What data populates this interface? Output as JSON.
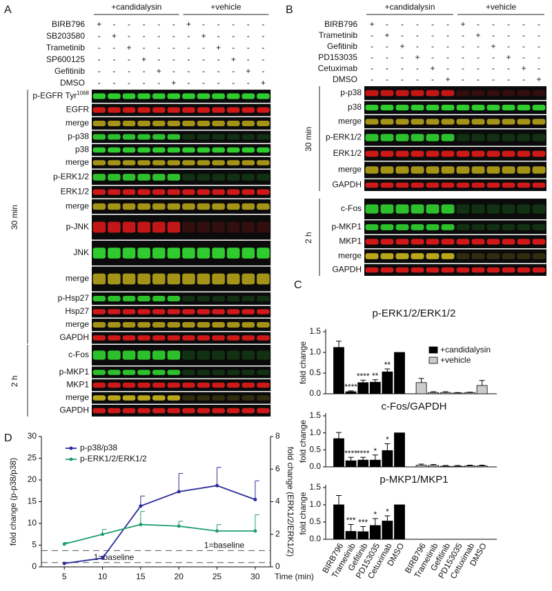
{
  "panel_A": {
    "label": "A",
    "groups": [
      "+candidalysin",
      "+vehicle"
    ],
    "treatments": [
      {
        "name": "BIRB796",
        "signs": [
          "+",
          "-",
          "-",
          "-",
          "-",
          "-",
          "+",
          "-",
          "-",
          "-",
          "-",
          "-"
        ]
      },
      {
        "name": "SB203580",
        "signs": [
          "-",
          "+",
          "-",
          "-",
          "-",
          "-",
          "-",
          "+",
          "-",
          "-",
          "-",
          "-"
        ]
      },
      {
        "name": "Trametinib",
        "signs": [
          "-",
          "-",
          "+",
          "-",
          "-",
          "-",
          "-",
          "-",
          "+",
          "-",
          "-",
          "-"
        ]
      },
      {
        "name": "SP600125",
        "signs": [
          "-",
          "-",
          "-",
          "+",
          "-",
          "-",
          "-",
          "-",
          "-",
          "+",
          "-",
          "-"
        ]
      },
      {
        "name": "Gefitinib",
        "signs": [
          "-",
          "-",
          "-",
          "-",
          "+",
          "-",
          "-",
          "-",
          "-",
          "-",
          "+",
          "-"
        ]
      },
      {
        "name": "DMSO",
        "signs": [
          "-",
          "-",
          "-",
          "-",
          "-",
          "+",
          "-",
          "-",
          "-",
          "-",
          "-",
          "+"
        ]
      }
    ],
    "sections": [
      {
        "label": "30 min",
        "rows": [
          {
            "text": "p-EGFR Tyr",
            "sup": "1068"
          },
          "EGFR",
          "merge",
          "p-p38",
          "p38",
          "merge",
          "p-ERK1/2",
          "ERK1/2",
          "merge",
          "p-JNK",
          "JNK",
          "merge",
          "p-Hsp27",
          "Hsp27",
          "merge",
          "GAPDH"
        ]
      },
      {
        "label": "2 h",
        "rows": [
          "c-Fos",
          "p-MKP1",
          "MKP1",
          "merge",
          "GAPDH"
        ]
      }
    ]
  },
  "panel_B": {
    "label": "B",
    "groups": [
      "+candidalysin",
      "+vehicle"
    ],
    "treatments": [
      {
        "name": "BIRB796",
        "signs": [
          "+",
          "-",
          "-",
          "-",
          "-",
          "-",
          "+",
          "-",
          "-",
          "-",
          "-",
          "-"
        ]
      },
      {
        "name": "Trametinib",
        "signs": [
          "-",
          "+",
          "-",
          "-",
          "-",
          "-",
          "-",
          "+",
          "-",
          "-",
          "-",
          "-"
        ]
      },
      {
        "name": "Gefitinib",
        "signs": [
          "-",
          "-",
          "+",
          "-",
          "-",
          "-",
          "-",
          "-",
          "+",
          "-",
          "-",
          "-"
        ]
      },
      {
        "name": "PD153035",
        "signs": [
          "-",
          "-",
          "-",
          "+",
          "-",
          "-",
          "-",
          "-",
          "-",
          "+",
          "-",
          "-"
        ]
      },
      {
        "name": "Cetuximab",
        "signs": [
          "-",
          "-",
          "-",
          "-",
          "+",
          "-",
          "-",
          "-",
          "-",
          "-",
          "+",
          "-"
        ]
      },
      {
        "name": "DMSO",
        "signs": [
          "-",
          "-",
          "-",
          "-",
          "-",
          "+",
          "-",
          "-",
          "-",
          "-",
          "-",
          "+"
        ]
      }
    ],
    "sections": [
      {
        "label": "30 min",
        "rows": [
          "p-p38",
          "p38",
          "merge",
          "p-ERK1/2",
          "ERK1/2",
          "merge",
          "GAPDH"
        ]
      },
      {
        "label": "2 h",
        "rows": [
          "c-Fos",
          "p-MKP1",
          "MKP1",
          "merge",
          "GAPDH"
        ]
      }
    ]
  },
  "panel_C": {
    "label": "C"
  },
  "panel_D": {
    "label": "D"
  },
  "chart_data": [
    {
      "type": "bar",
      "title": "p-ERK1/2/ERK1/2",
      "ylabel": "fold change",
      "ylim": [
        0,
        1.5
      ],
      "yticks": [
        {
          "value": 0,
          "label": "0.0"
        },
        0.5,
        {
          "value": 1,
          "label": "1.0"
        },
        1.5
      ],
      "legend": "upper right",
      "series": [
        {
          "name": "+candidalysin",
          "color": "#000000",
          "values": [
            1.12,
            0.05,
            0.27,
            0.28,
            0.53,
            1,
            null,
            null,
            null,
            null,
            null,
            null
          ],
          "errors": [
            0.15,
            0.02,
            0.06,
            0.06,
            0.07,
            null,
            null,
            null,
            null,
            null,
            null,
            null
          ],
          "significance": [
            null,
            "****",
            "****",
            "**",
            "**",
            null,
            null,
            null,
            null,
            null,
            null,
            null
          ]
        },
        {
          "name": "+vehicle",
          "color": "#cccccc",
          "values": [
            null,
            null,
            null,
            null,
            null,
            null,
            0.27,
            0.03,
            0.03,
            0.02,
            0.03,
            0.2
          ],
          "errors": [
            null,
            null,
            null,
            null,
            null,
            null,
            0.1,
            0.02,
            0.02,
            0.01,
            0.01,
            0.12
          ]
        }
      ]
    },
    {
      "type": "bar",
      "title": "c-Fos/GAPDH",
      "ylabel": "fold change",
      "ylim": [
        0,
        1.5
      ],
      "yticks": [
        {
          "value": 0,
          "label": "0.0"
        },
        0.5,
        {
          "value": 1,
          "label": "1.0"
        },
        1.5
      ],
      "series": [
        {
          "color": "#000000",
          "values": [
            0.83,
            0.18,
            0.2,
            0.2,
            0.48,
            1,
            null,
            null,
            null,
            null,
            null,
            null
          ],
          "errors": [
            0.18,
            0.1,
            0.08,
            0.15,
            0.2,
            null,
            null,
            null,
            null,
            null,
            null,
            null
          ],
          "significance": [
            null,
            "****",
            "****",
            "*",
            "*",
            null,
            null,
            null,
            null,
            null,
            null,
            null
          ]
        },
        {
          "color": "#cccccc",
          "values": [
            null,
            null,
            null,
            null,
            null,
            null,
            0.05,
            0.04,
            0.02,
            0.02,
            0.03,
            0.03
          ],
          "errors": [
            null,
            null,
            null,
            null,
            null,
            null,
            0.03,
            0.03,
            0.02,
            0.02,
            0.02,
            0.02
          ]
        }
      ]
    },
    {
      "type": "bar",
      "title": "p-MKP1/MKP1",
      "ylabel": "fold change",
      "ylim": [
        0,
        1.5
      ],
      "yticks": [
        {
          "value": 0,
          "label": "0.0"
        },
        0.5,
        {
          "value": 1,
          "label": "1.0"
        },
        1.5
      ],
      "categories": [
        "BIRB796",
        "Trametinib",
        "Gefitinib",
        "PD153035",
        "Cetuximab",
        "DMSO",
        "BIRB796",
        "Trametinib",
        "Gefitinib",
        "PD153035",
        "Cetuximab",
        "DMSO"
      ],
      "series": [
        {
          "color": "#000000",
          "values": [
            1,
            0.23,
            0.22,
            0.4,
            0.53,
            1,
            null,
            null,
            null,
            null,
            null,
            null
          ],
          "errors": [
            0.27,
            0.2,
            0.15,
            0.2,
            0.15,
            null,
            null,
            null,
            null,
            null,
            null,
            null
          ],
          "significance": [
            null,
            "***",
            "***",
            "*",
            "*",
            null,
            null,
            null,
            null,
            null,
            null,
            null
          ]
        }
      ]
    },
    {
      "type": "line",
      "x": [
        5,
        10,
        15,
        20,
        25,
        30
      ],
      "xlim": [
        2,
        32
      ],
      "xticks": [
        5,
        10,
        15,
        20,
        25,
        30
      ],
      "xlabel": "Time (min)",
      "ylabel": "fold change (p-p38/p38)",
      "y2label": "fold change (ERK1/2/ERK1/2)",
      "ylim": [
        0,
        30
      ],
      "yticks": [
        0,
        5,
        10,
        15,
        20,
        25,
        30
      ],
      "y2lim": [
        0,
        8
      ],
      "y2ticks": [
        0,
        2,
        4,
        6,
        8
      ],
      "legend": "upper left",
      "series": [
        {
          "name": "p-p38/p38",
          "color": "#2a2a9a",
          "values": [
            0.8,
            2,
            14,
            17.3,
            18.7,
            15.5
          ],
          "errors": [
            0.2,
            0.5,
            2.3,
            4.2,
            4.2,
            4.3
          ]
        },
        {
          "name": "p-ERK1/2/ERK1/2",
          "color": "#1e9e6e",
          "axis": "y2",
          "values": [
            1.4,
            2,
            2.6,
            2.5,
            2.2,
            2.2
          ],
          "errors": [
            0.1,
            0.3,
            0.8,
            0.3,
            0.4,
            1
          ]
        }
      ],
      "reference_lines": [
        {
          "value": 1,
          "axis": "y",
          "label": "1=baseline",
          "color": "#2a2a9a"
        },
        {
          "value": 1,
          "axis": "y2",
          "label": "1=baseline",
          "color": "#1e9e6e"
        }
      ]
    }
  ]
}
